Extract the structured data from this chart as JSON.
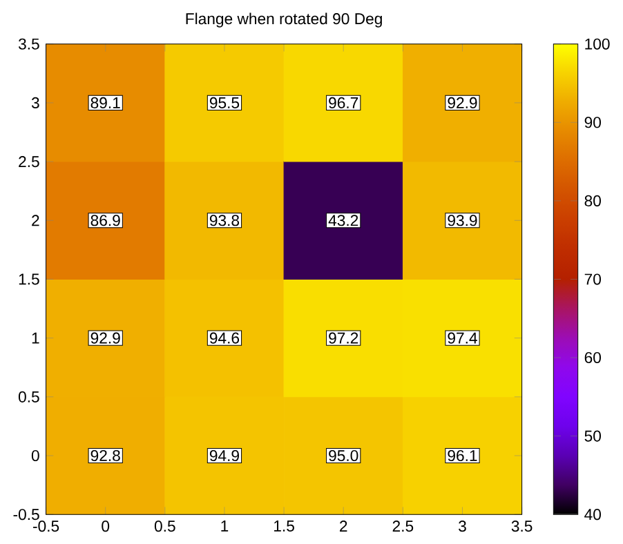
{
  "chart_data": {
    "type": "heatmap",
    "title": "Flange when rotated 90 Deg",
    "xlim": [
      -0.5,
      3.5
    ],
    "xticks": [
      -0.5,
      0,
      0.5,
      1,
      1.5,
      2,
      2.5,
      3,
      3.5
    ],
    "ylim": [
      -0.5,
      3.5
    ],
    "yticks": [
      -0.5,
      0,
      0.5,
      1,
      1.5,
      2,
      2.5,
      3,
      3.5
    ],
    "cells": [
      [
        89.1,
        95.5,
        96.7,
        92.9
      ],
      [
        86.9,
        93.8,
        43.2,
        93.9
      ],
      [
        92.9,
        94.6,
        97.2,
        97.4
      ],
      [
        92.8,
        94.9,
        95.0,
        96.1
      ]
    ],
    "cell_labels": [
      [
        "89.1",
        "95.5",
        "96.7",
        "92.9"
      ],
      [
        "86.9",
        "93.8",
        "43.2",
        "93.9"
      ],
      [
        "92.9",
        "94.6",
        "97.2",
        "97.4"
      ],
      [
        "92.8",
        "94.9",
        "95.0",
        "96.1"
      ]
    ],
    "clim": [
      40,
      100
    ],
    "cticks": [
      40,
      50,
      60,
      70,
      80,
      90,
      100
    ]
  }
}
